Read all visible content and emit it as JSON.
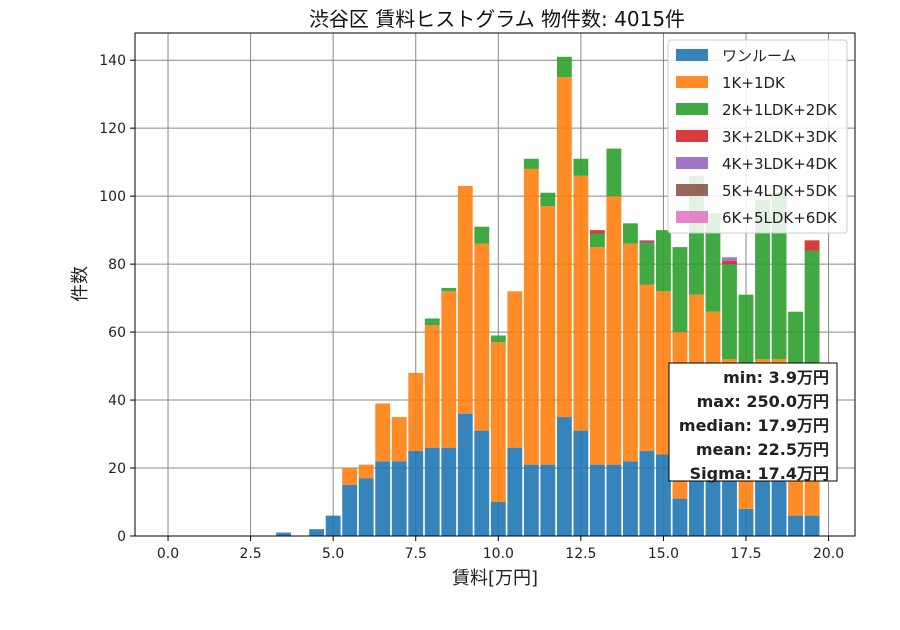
{
  "chart_data": {
    "type": "bar",
    "stacked": true,
    "title": "渋谷区 賃料ヒストグラム 物件数: 4015件",
    "xlabel": "賃料[万円]",
    "ylabel": "件数",
    "xlim": [
      -1.0,
      20.8
    ],
    "ylim": [
      0,
      148
    ],
    "xticks": [
      0,
      2.5,
      5,
      7.5,
      10,
      12.5,
      15,
      17.5,
      20
    ],
    "xtick_labels": [
      "0.0",
      "2.5",
      "5.0",
      "7.5",
      "10.0",
      "12.5",
      "15.0",
      "17.5",
      "20.0"
    ],
    "yticks": [
      0,
      20,
      40,
      60,
      80,
      100,
      120,
      140
    ],
    "ytick_labels": [
      "0",
      "20",
      "40",
      "60",
      "80",
      "100",
      "120",
      "140"
    ],
    "grid": true,
    "legend_position": "top-right",
    "bin_width": 0.5,
    "x": [
      3.5,
      4.5,
      5.0,
      5.5,
      6.0,
      6.5,
      7.0,
      7.5,
      8.0,
      8.5,
      9.0,
      9.5,
      10.0,
      10.5,
      11.0,
      11.5,
      12.0,
      12.5,
      13.0,
      13.5,
      14.0,
      14.5,
      15.0,
      15.5,
      16.0,
      16.5,
      17.0,
      17.5,
      18.0,
      18.5,
      19.0,
      19.5
    ],
    "series": [
      {
        "name": "ワンルーム",
        "color": "#1f77b4",
        "values": [
          1,
          2,
          6,
          15,
          17,
          22,
          22,
          25,
          26,
          26,
          36,
          31,
          10,
          26,
          21,
          21,
          35,
          31,
          21,
          21,
          22,
          25,
          24,
          11,
          22,
          22,
          22,
          8,
          22,
          22,
          6,
          6
        ]
      },
      {
        "name": "1K+1DK",
        "color": "#ff7f0e",
        "values": [
          0,
          0,
          0,
          5,
          4,
          17,
          13,
          23,
          36,
          46,
          67,
          55,
          47,
          46,
          87,
          76,
          100,
          75,
          64,
          79,
          64,
          49,
          48,
          49,
          49,
          44,
          30,
          39,
          30,
          30,
          20,
          20
        ]
      },
      {
        "name": "2K+1LDK+2DK",
        "color": "#2ca02c",
        "values": [
          0,
          0,
          0,
          0,
          0,
          0,
          0,
          0,
          2,
          1,
          0,
          5,
          2,
          0,
          3,
          4,
          6,
          5,
          4,
          14,
          6,
          12,
          18,
          25,
          35,
          29,
          28,
          24,
          47,
          49,
          40,
          58
        ]
      },
      {
        "name": "3K+2LDK+3DK",
        "color": "#d62728",
        "values": [
          0,
          0,
          0,
          0,
          0,
          0,
          0,
          0,
          0,
          0,
          0,
          0,
          0,
          0,
          0,
          0,
          0,
          0,
          1,
          0,
          0,
          0,
          0,
          0,
          0,
          0,
          1,
          0,
          0,
          0,
          0,
          3
        ]
      },
      {
        "name": "4K+3LDK+4DK",
        "color": "#9467bd",
        "values": [
          0,
          0,
          0,
          0,
          0,
          0,
          0,
          0,
          0,
          0,
          0,
          0,
          0,
          0,
          0,
          0,
          0,
          0,
          0,
          0,
          0,
          0,
          0,
          0,
          0,
          0,
          1,
          0,
          0,
          0,
          0,
          0
        ]
      },
      {
        "name": "5K+4LDK+5DK",
        "color": "#8c564b",
        "values": [
          0,
          0,
          0,
          0,
          0,
          0,
          0,
          0,
          0,
          0,
          0,
          0,
          0,
          0,
          0,
          0,
          0,
          0,
          0,
          0,
          0,
          1,
          0,
          0,
          0,
          0,
          0,
          0,
          0,
          0,
          0,
          0
        ]
      },
      {
        "name": "6K+5LDK+6DK",
        "color": "#e377c2",
        "values": [
          0,
          0,
          0,
          0,
          0,
          0,
          0,
          0,
          0,
          0,
          0,
          0,
          0,
          0,
          0,
          0,
          0,
          0,
          0,
          0,
          0,
          0,
          0,
          0,
          0,
          0,
          0,
          0,
          0,
          0,
          0,
          0
        ]
      }
    ],
    "stats": [
      "min: 3.9万円",
      "max: 250.0万円",
      "median: 17.9万円",
      "mean: 22.5万円",
      "Sigma: 17.4万円"
    ]
  }
}
